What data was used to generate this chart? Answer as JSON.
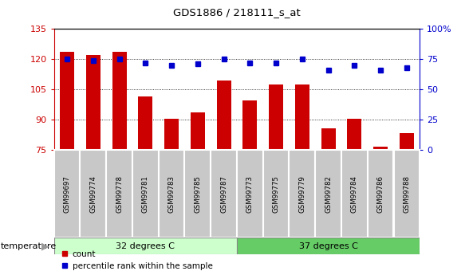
{
  "title": "GDS1886 / 218111_s_at",
  "samples": [
    "GSM99697",
    "GSM99774",
    "GSM99778",
    "GSM99781",
    "GSM99783",
    "GSM99785",
    "GSM99787",
    "GSM99773",
    "GSM99775",
    "GSM99779",
    "GSM99782",
    "GSM99784",
    "GSM99786",
    "GSM99788"
  ],
  "count_values": [
    123.5,
    122.0,
    123.5,
    101.5,
    90.5,
    93.5,
    109.5,
    99.5,
    107.5,
    107.5,
    85.5,
    90.5,
    76.5,
    83.5
  ],
  "percentile_values": [
    75,
    74,
    75,
    72,
    70,
    71,
    75,
    72,
    72,
    75,
    66,
    70,
    66,
    68
  ],
  "ylim_left": [
    75,
    135
  ],
  "ylim_right": [
    0,
    100
  ],
  "yticks_left": [
    75,
    90,
    105,
    120,
    135
  ],
  "yticks_right": [
    0,
    25,
    50,
    75,
    100
  ],
  "bar_color": "#cc0000",
  "dot_color": "#0000cc",
  "group1_label": "32 degrees C",
  "group2_label": "37 degrees C",
  "group1_count": 7,
  "group2_count": 7,
  "group1_color": "#ccffcc",
  "group2_color": "#66cc66",
  "temp_label": "temperature",
  "legend_count": "count",
  "legend_percentile": "percentile rank within the sample",
  "tick_label_bg": "#c8c8c8",
  "dotted_gridlines": [
    90,
    105,
    120
  ]
}
